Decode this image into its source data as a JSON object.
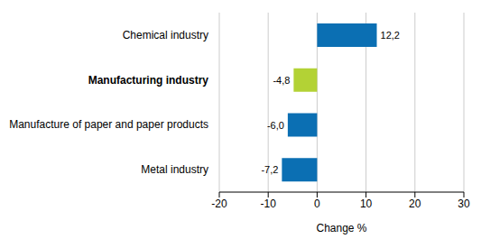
{
  "chart_data": {
    "type": "bar",
    "orientation": "horizontal",
    "categories": [
      "Chemical industry",
      "Manufacturing industry",
      "Manufacture of paper and paper products",
      "Metal industry"
    ],
    "values": [
      12.2,
      -4.8,
      -6.0,
      -7.2
    ],
    "value_labels": [
      "12,2",
      "-4,8",
      "-6,0",
      "-7,2"
    ],
    "colors": [
      "#0b6fb3",
      "#b3d235",
      "#0b6fb3",
      "#0b6fb3"
    ],
    "xlabel": "Change %",
    "xlim": [
      -20,
      30
    ],
    "xticks": [
      -20,
      -10,
      0,
      10,
      20,
      30
    ],
    "grid": true,
    "data_labels": true
  }
}
